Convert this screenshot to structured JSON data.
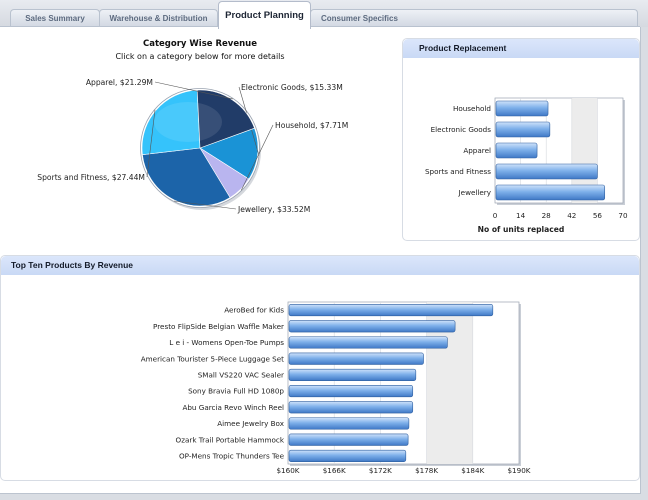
{
  "tabs": [
    {
      "label": "Sales Summary",
      "active": false
    },
    {
      "label": "Warehouse & Distribution",
      "active": false
    },
    {
      "label": "Product Planning",
      "active": true
    },
    {
      "label": "Consumer Specifics",
      "active": false
    }
  ],
  "category_chart": {
    "title": "Category Wise Revenue",
    "subtitle": "Click on a category below for more details"
  },
  "replacement_panel": {
    "title": "Product Replacement"
  },
  "top_ten_panel": {
    "title": "Top Ten Products By Revenue"
  },
  "chart_data": [
    {
      "type": "pie",
      "title": "Category Wise Revenue",
      "subtitle": "Click on a category below for more details",
      "categories": [
        "Electronic Goods",
        "Household",
        "Jewellery",
        "Sports and Fitness",
        "Apparel"
      ],
      "values": [
        15.33,
        7.71,
        33.52,
        27.44,
        21.29
      ],
      "labels": [
        "Electronic Goods, $15.33M",
        "Household, $7.71M",
        "Jewellery, $33.52M",
        "Sports and Fitness, $27.44M",
        "Apparel, $21.29M"
      ],
      "colors": [
        "#1a93d6",
        "#b9b5ef",
        "#1c64a9",
        "#35c3fb",
        "#213c68"
      ]
    },
    {
      "type": "bar",
      "title": "Product Replacement",
      "orientation": "horizontal",
      "categories": [
        "Household",
        "Electronic Goods",
        "Apparel",
        "Sports and Fitness",
        "Jewellery"
      ],
      "values": [
        29,
        30,
        23,
        56,
        60
      ],
      "xlabel": "No of units replaced",
      "xlim": [
        0,
        70
      ],
      "ticks": [
        "0",
        "14",
        "28",
        "42",
        "56",
        "70"
      ],
      "color": "#5e97dc"
    },
    {
      "type": "bar",
      "title": "Top Ten Products By Revenue",
      "orientation": "horizontal",
      "categories": [
        "AeroBed for Kids",
        "Presto FlipSide Belgian Waffle Maker",
        "L e i - Womens Open-Toe Pumps",
        "American Tourister 5-Piece Luggage Set",
        "SMall VS220 VAC Sealer",
        "Sony Bravia Full HD 1080p",
        "Abu Garcia Revo Winch Reel",
        "Aimee Jewelry Box",
        "Ozark Trail Portable Hammock",
        "OP-Mens Tropic Thunders Tee"
      ],
      "values": [
        186.6,
        181.7,
        180.7,
        177.6,
        176.6,
        176.2,
        176.2,
        175.7,
        175.6,
        175.3
      ],
      "xlim": [
        160,
        190
      ],
      "ticks": [
        "$160K",
        "$166K",
        "$172K",
        "$178K",
        "$184K",
        "$190K"
      ],
      "color": "#5e97dc"
    }
  ]
}
